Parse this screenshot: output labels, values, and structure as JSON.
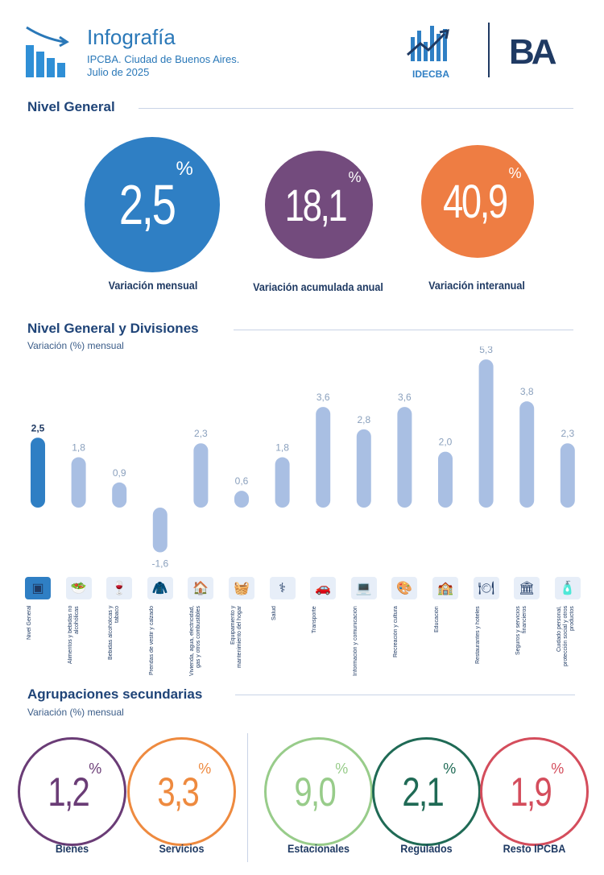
{
  "header": {
    "title": "Infografía",
    "subtitle_line1": "IPCBA. Ciudad de Buenos Aires.",
    "subtitle_line2": "Julio de 2025",
    "logo_idecba": "IDECBA",
    "logo_ba": "BA"
  },
  "nivel_general": {
    "section_title": "Nivel General",
    "stats": [
      {
        "value": "2,5",
        "unit": "%",
        "label": "Variación mensual",
        "color": "#2f7fc4"
      },
      {
        "value": "18,1",
        "unit": "%",
        "label": "Variación acumulada anual",
        "color": "#734b7d"
      },
      {
        "value": "40,9",
        "unit": "%",
        "label": "Variación interanual",
        "color": "#ee7d43"
      }
    ]
  },
  "chart_section": {
    "title": "Nivel General y Divisiones",
    "subtitle": "Variación (%) mensual"
  },
  "chart_data": {
    "type": "bar",
    "categories": [
      "Nivel General",
      "Alimentos y bebidas no alcohólicas",
      "Bebidas alcohólicas y tabaco",
      "Prendas de vestir y calzado",
      "Vivienda, agua, electricidad, gas y otros combustibles",
      "Equipamiento y mantenimiento del hogar",
      "Salud",
      "Transporte",
      "Información y comunicación",
      "Recreación y cultura",
      "Educación",
      "Restaurantes y hoteles",
      "Seguros y servicios financieros",
      "Cuidado personal, protección social y otros productos"
    ],
    "values": [
      2.5,
      1.8,
      0.9,
      -1.6,
      2.3,
      0.6,
      1.8,
      3.6,
      2.8,
      3.6,
      2.0,
      5.3,
      3.8,
      2.3
    ],
    "value_labels": [
      "2,5",
      "1,8",
      "0,9",
      "-1,6",
      "2,3",
      "0,6",
      "1,8",
      "3,6",
      "2,8",
      "3,6",
      "2,0",
      "5,3",
      "3,8",
      "2,3"
    ],
    "highlight_color": "#2f7fc4",
    "bar_color": "#a9bfe3",
    "ylim": [
      -1.6,
      5.3
    ]
  },
  "icons": [
    "ipc-ba-logo-icon",
    "food-icon",
    "wine-bottle-icon",
    "jacket-icon",
    "house-icon",
    "washing-machine-icon",
    "doctor-icon",
    "car-plane-icon",
    "computer-icon",
    "recreation-icon",
    "school-icon",
    "restaurant-icon",
    "bank-icon",
    "personal-care-icon"
  ],
  "agrupaciones": {
    "title": "Agrupaciones secundarias",
    "subtitle": "Variación (%) mensual",
    "items": [
      {
        "value": "1,2",
        "unit": "%",
        "label": "Bienes",
        "color": "#6a3c76"
      },
      {
        "value": "3,3",
        "unit": "%",
        "label": "Servicios",
        "color": "#ee8a3f"
      },
      {
        "value": "9,0",
        "unit": "%",
        "label": "Estacionales",
        "color": "#98cc8a"
      },
      {
        "value": "2,1",
        "unit": "%",
        "label": "Regulados",
        "color": "#1f6a55"
      },
      {
        "value": "1,9",
        "unit": "%",
        "label": "Resto IPCBA",
        "color": "#d44d5c"
      }
    ]
  }
}
